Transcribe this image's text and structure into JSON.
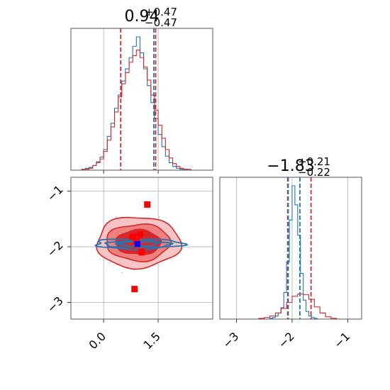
{
  "chart_data": [
    {
      "type": "histogram",
      "panel": "top-left",
      "title": {
        "median": "0.94",
        "plus": "+0.47",
        "minus": "−0.47"
      },
      "x_range": [
        -0.9,
        3.0
      ],
      "x_ticks": [
        0.0,
        1.5
      ],
      "grid": true,
      "series": [
        {
          "name": "",
          "color": "#1f77b4",
          "bin_edges": [
            -0.6,
            -0.5,
            -0.4,
            -0.3,
            -0.2,
            -0.1,
            0.0,
            0.1,
            0.2,
            0.3,
            0.4,
            0.5,
            0.6,
            0.7,
            0.8,
            0.9,
            1.0,
            1.1,
            1.2,
            1.3,
            1.4,
            1.5,
            1.6,
            1.7,
            1.8,
            1.9,
            2.0,
            2.1,
            2.2,
            2.3,
            2.4,
            2.5
          ],
          "counts": [
            1,
            2,
            3,
            5,
            9,
            14,
            22,
            36,
            50,
            66,
            80,
            95,
            108,
            120,
            132,
            142,
            125,
            108,
            90,
            72,
            55,
            38,
            25,
            15,
            8,
            4,
            2,
            1,
            1,
            0,
            0
          ]
        },
        {
          "name": "",
          "color": "#d62728",
          "bin_edges": [
            -0.6,
            -0.5,
            -0.4,
            -0.3,
            -0.2,
            -0.1,
            0.0,
            0.1,
            0.2,
            0.3,
            0.4,
            0.5,
            0.6,
            0.7,
            0.8,
            0.9,
            1.0,
            1.1,
            1.2,
            1.3,
            1.4,
            1.5,
            1.6,
            1.7,
            1.8,
            1.9,
            2.0,
            2.1,
            2.2,
            2.3,
            2.4,
            2.5
          ],
          "counts": [
            1,
            1,
            2,
            5,
            8,
            12,
            20,
            32,
            46,
            62,
            78,
            92,
            104,
            115,
            122,
            128,
            120,
            110,
            96,
            80,
            64,
            48,
            34,
            22,
            13,
            7,
            4,
            2,
            1,
            1,
            0
          ]
        }
      ],
      "vlines": [
        {
          "x": 0.47,
          "color": "#d62728",
          "style": "dashed"
        },
        {
          "x": 1.38,
          "color": "#1f77b4",
          "style": "dashed"
        },
        {
          "x": 1.43,
          "color": "#d62728",
          "style": "dashed"
        }
      ]
    },
    {
      "type": "contour",
      "panel": "bottom-left",
      "x_range": [
        -0.9,
        3.0
      ],
      "y_range": [
        -3.3,
        -0.75
      ],
      "x_ticks": [
        0.0,
        1.5
      ],
      "y_ticks": [
        -1,
        -2,
        -3
      ],
      "x_tick_labels": [
        "0.0",
        "1.5"
      ],
      "y_tick_labels": [
        "−1",
        "−2",
        "−3"
      ],
      "grid": true,
      "red_contours": {
        "center": [
          0.95,
          -1.92
        ],
        "levels_radii": [
          [
            1.15,
            0.46
          ],
          [
            0.88,
            0.33
          ],
          [
            0.62,
            0.22
          ]
        ],
        "fill_colors": [
          "#f6c4c4",
          "#ee8080",
          "#d9262b"
        ],
        "line_color": "#d62728"
      },
      "blue_contours": {
        "center": [
          0.95,
          -1.95
        ],
        "levels_radii": [
          [
            1.2,
            0.09
          ],
          [
            0.9,
            0.06
          ],
          [
            0.55,
            0.04
          ]
        ],
        "line_color": "#1f77b4"
      },
      "red_markers": [
        [
          1.2,
          -1.24
        ],
        [
          0.85,
          -2.76
        ],
        [
          0.8,
          -1.82
        ],
        [
          1.0,
          -1.78
        ],
        [
          1.05,
          -2.1
        ],
        [
          0.9,
          -1.9
        ]
      ],
      "blue_markers": [
        [
          0.93,
          -1.95
        ]
      ]
    },
    {
      "type": "histogram",
      "panel": "bottom-right",
      "title": {
        "median": "−1.83",
        "plus": "+0.21",
        "minus": "−0.22"
      },
      "x_range": [
        -3.3,
        -0.75
      ],
      "x_ticks": [
        -3,
        -2,
        -1
      ],
      "x_tick_labels": [
        "−3",
        "−2",
        "−1"
      ],
      "grid": true,
      "series": [
        {
          "name": "",
          "color": "#1f77b4",
          "bin_edges": [
            -2.4,
            -2.35,
            -2.3,
            -2.25,
            -2.2,
            -2.15,
            -2.1,
            -2.05,
            -2.0,
            -1.95,
            -1.9,
            -1.85,
            -1.8,
            -1.75,
            -1.7,
            -1.65,
            -1.6,
            -1.55
          ],
          "counts": [
            1,
            2,
            4,
            8,
            15,
            35,
            75,
            130,
            175,
            150,
            110,
            60,
            25,
            10,
            4,
            2,
            1
          ]
        },
        {
          "name": "",
          "color": "#d62728",
          "bin_edges": [
            -2.6,
            -2.5,
            -2.4,
            -2.3,
            -2.2,
            -2.1,
            -2.0,
            -1.9,
            -1.8,
            -1.7,
            -1.6,
            -1.5,
            -1.4,
            -1.3,
            -1.2
          ],
          "counts": [
            1,
            2,
            4,
            8,
            14,
            22,
            30,
            33,
            32,
            26,
            16,
            8,
            3,
            1
          ]
        }
      ],
      "vlines": [
        {
          "x": -2.08,
          "color": "#d62728",
          "style": "dashed"
        },
        {
          "x": -2.07,
          "color": "#1f77b4",
          "style": "dashed"
        },
        {
          "x": -1.86,
          "color": "#1f77b4",
          "style": "dashed"
        },
        {
          "x": -1.66,
          "color": "#d62728",
          "style": "dashed"
        }
      ]
    }
  ]
}
